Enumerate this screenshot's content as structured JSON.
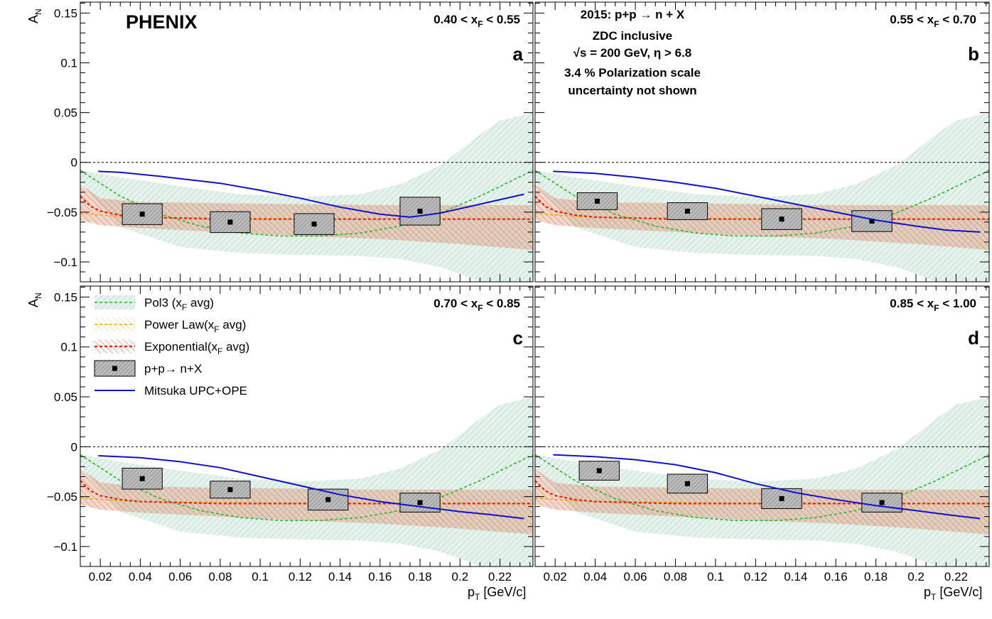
{
  "chart_data": {
    "type": "scatter",
    "experiment": "PHENIX",
    "process_title": "2015: p+p → n + X",
    "annotations": [
      "ZDC inclusive",
      "√s = 200 GeV, η > 6.8",
      "3.4 % Polarization scale",
      "uncertainty not shown"
    ],
    "xlabel": "p",
    "xlabel_sub": "T",
    "xlabel_unit": " [GeV/c]",
    "ylabel": "A",
    "ylabel_sub": "N",
    "xlim": [
      0.01,
      0.2365
    ],
    "ylim": [
      -0.12,
      0.161
    ],
    "xticks": [
      {
        "v": 0.02,
        "label": "0.02"
      },
      {
        "v": 0.04,
        "label": "0.04"
      },
      {
        "v": 0.06,
        "label": "0.06"
      },
      {
        "v": 0.08,
        "label": "0.08"
      },
      {
        "v": 0.1,
        "label": "0.1"
      },
      {
        "v": 0.12,
        "label": "0.12"
      },
      {
        "v": 0.14,
        "label": "0.14"
      },
      {
        "v": 0.16,
        "label": "0.16"
      },
      {
        "v": 0.18,
        "label": "0.18"
      },
      {
        "v": 0.2,
        "label": "0.2"
      },
      {
        "v": 0.22,
        "label": "0.22"
      }
    ],
    "yticks": [
      {
        "v": 0.15,
        "label": "0.15"
      },
      {
        "v": 0.1,
        "label": "0.1"
      },
      {
        "v": 0.05,
        "label": "0.05"
      },
      {
        "v": 0,
        "label": "0"
      },
      {
        "v": -0.05,
        "label": "−0.05"
      },
      {
        "v": -0.1,
        "label": "−0.1"
      }
    ],
    "legend": [
      {
        "kind": "pol3",
        "label": "Pol3 (x",
        "sub": "F",
        "tail": " avg)"
      },
      {
        "kind": "power",
        "label": "Power Law(x",
        "sub": "F",
        "tail": " avg)"
      },
      {
        "kind": "exp",
        "label": "Exponential(x",
        "sub": "F",
        "tail": " avg)"
      },
      {
        "kind": "data",
        "label": "p+p→ n+X",
        "sub": "",
        "tail": ""
      },
      {
        "kind": "model",
        "label": "Mitsuka UPC+OPE",
        "sub": "",
        "tail": ""
      }
    ],
    "colors": {
      "pol3": "#2ab52a",
      "power": "#f5a300",
      "exp": "#ee2200",
      "model": "#1010d0",
      "band_pol3": "#b9d9cc",
      "band_exp": "#e4a98a",
      "box_fill": "#9e9e9e"
    },
    "panels": [
      {
        "id": "a",
        "letter": "a",
        "range_text": "0.40 < x",
        "range_sub": "F",
        "range_tail": " < 0.55",
        "points": [
          {
            "x": 0.041,
            "y": -0.052,
            "dx": 0.01,
            "sys": 0.0105
          },
          {
            "x": 0.085,
            "y": -0.06,
            "dx": 0.01,
            "sys": 0.0105
          },
          {
            "x": 0.127,
            "y": -0.062,
            "dx": 0.01,
            "sys": 0.0105
          },
          {
            "x": 0.18,
            "y": -0.049,
            "dx": 0.01,
            "sys": 0.014
          }
        ],
        "model": {
          "x": [
            0.019,
            0.03,
            0.05,
            0.08,
            0.1,
            0.12,
            0.14,
            0.16,
            0.175,
            0.19,
            0.21,
            0.232
          ],
          "y": [
            -0.009,
            -0.01,
            -0.014,
            -0.021,
            -0.028,
            -0.036,
            -0.045,
            -0.052,
            -0.055,
            -0.051,
            -0.042,
            -0.032
          ]
        }
      },
      {
        "id": "b",
        "letter": "b",
        "range_text": "0.55 < x",
        "range_sub": "F",
        "range_tail": " < 0.70",
        "points": [
          {
            "x": 0.041,
            "y": -0.039,
            "dx": 0.01,
            "sys": 0.0085
          },
          {
            "x": 0.086,
            "y": -0.049,
            "dx": 0.01,
            "sys": 0.0085
          },
          {
            "x": 0.133,
            "y": -0.057,
            "dx": 0.01,
            "sys": 0.0105
          },
          {
            "x": 0.178,
            "y": -0.059,
            "dx": 0.01,
            "sys": 0.0105
          }
        ],
        "model": {
          "x": [
            0.019,
            0.04,
            0.06,
            0.08,
            0.1,
            0.12,
            0.14,
            0.16,
            0.18,
            0.2,
            0.215,
            0.232
          ],
          "y": [
            -0.009,
            -0.011,
            -0.015,
            -0.02,
            -0.026,
            -0.034,
            -0.042,
            -0.05,
            -0.058,
            -0.064,
            -0.068,
            -0.07
          ]
        }
      },
      {
        "id": "c",
        "letter": "c",
        "range_text": "0.70 < x",
        "range_sub": "F",
        "range_tail": " < 0.85",
        "points": [
          {
            "x": 0.041,
            "y": -0.032,
            "dx": 0.01,
            "sys": 0.0105
          },
          {
            "x": 0.085,
            "y": -0.043,
            "dx": 0.01,
            "sys": 0.0085
          },
          {
            "x": 0.134,
            "y": -0.053,
            "dx": 0.01,
            "sys": 0.0105
          },
          {
            "x": 0.18,
            "y": -0.056,
            "dx": 0.01,
            "sys": 0.0095
          }
        ],
        "model": {
          "x": [
            0.019,
            0.04,
            0.06,
            0.08,
            0.1,
            0.12,
            0.14,
            0.16,
            0.18,
            0.2,
            0.215,
            0.232
          ],
          "y": [
            -0.009,
            -0.011,
            -0.015,
            -0.021,
            -0.03,
            -0.039,
            -0.048,
            -0.055,
            -0.06,
            -0.065,
            -0.068,
            -0.072
          ]
        }
      },
      {
        "id": "d",
        "letter": "d",
        "range_text": "0.85 < x",
        "range_sub": "F",
        "range_tail": " < 1.00",
        "points": [
          {
            "x": 0.042,
            "y": -0.024,
            "dx": 0.01,
            "sys": 0.0095
          },
          {
            "x": 0.086,
            "y": -0.037,
            "dx": 0.01,
            "sys": 0.0095
          },
          {
            "x": 0.133,
            "y": -0.052,
            "dx": 0.01,
            "sys": 0.01
          },
          {
            "x": 0.183,
            "y": -0.056,
            "dx": 0.01,
            "sys": 0.0095
          }
        ],
        "model": {
          "x": [
            0.019,
            0.04,
            0.06,
            0.08,
            0.1,
            0.12,
            0.14,
            0.16,
            0.18,
            0.2,
            0.215,
            0.232
          ],
          "y": [
            -0.008,
            -0.01,
            -0.013,
            -0.018,
            -0.026,
            -0.037,
            -0.046,
            -0.053,
            -0.059,
            -0.064,
            -0.068,
            -0.072
          ]
        }
      }
    ],
    "pol3_curve": {
      "x": [
        0.01,
        0.03,
        0.05,
        0.07,
        0.09,
        0.11,
        0.13,
        0.15,
        0.17,
        0.19,
        0.21,
        0.2365
      ],
      "y": [
        -0.008,
        -0.034,
        -0.052,
        -0.064,
        -0.071,
        -0.074,
        -0.074,
        -0.071,
        -0.064,
        -0.051,
        -0.034,
        -0.008
      ]
    },
    "exp_curve": {
      "x": [
        0.01,
        0.015,
        0.02,
        0.03,
        0.04,
        0.06,
        0.08,
        0.12,
        0.16,
        0.2,
        0.2365
      ],
      "y": [
        -0.034,
        -0.044,
        -0.049,
        -0.053,
        -0.055,
        -0.056,
        -0.057,
        -0.057,
        -0.057,
        -0.057,
        -0.057
      ]
    },
    "power_curve": {
      "x": [
        0.01,
        0.02,
        0.04,
        0.08,
        0.14,
        0.2,
        0.2365
      ],
      "y": [
        -0.051,
        -0.053,
        -0.055,
        -0.056,
        -0.057,
        -0.057,
        -0.057
      ]
    },
    "pol3_band": {
      "x": [
        0.01,
        0.03,
        0.06,
        0.09,
        0.12,
        0.15,
        0.17,
        0.19,
        0.2,
        0.21,
        0.22,
        0.2365
      ],
      "upper": [
        -0.008,
        -0.015,
        -0.024,
        -0.032,
        -0.035,
        -0.032,
        -0.022,
        -0.003,
        0.012,
        0.028,
        0.042,
        0.05
      ],
      "lower": [
        -0.02,
        -0.065,
        -0.085,
        -0.091,
        -0.093,
        -0.094,
        -0.097,
        -0.105,
        -0.112,
        -0.12,
        -0.128,
        -0.135
      ]
    },
    "exp_band": {
      "x": [
        0.01,
        0.02,
        0.04,
        0.08,
        0.12,
        0.16,
        0.2,
        0.2365
      ],
      "upper": [
        -0.022,
        -0.036,
        -0.04,
        -0.041,
        -0.042,
        -0.043,
        -0.043,
        -0.043
      ],
      "lower": [
        -0.058,
        -0.063,
        -0.066,
        -0.07,
        -0.074,
        -0.077,
        -0.082,
        -0.088
      ]
    }
  }
}
